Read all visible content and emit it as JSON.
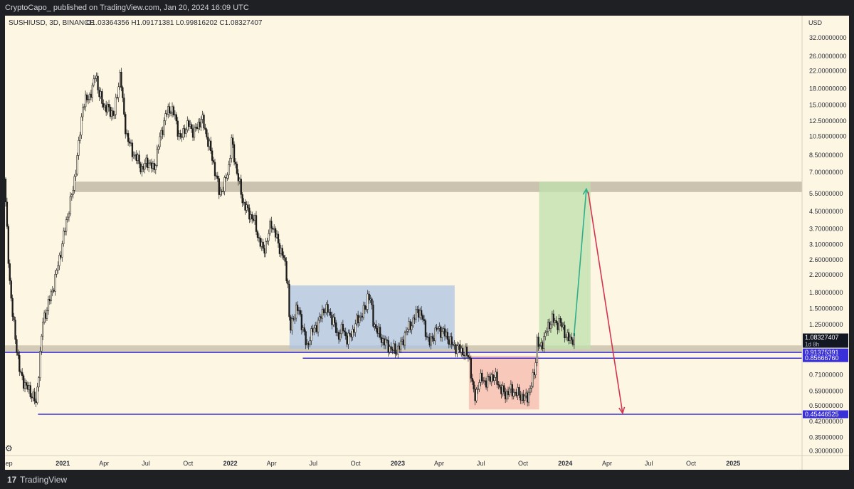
{
  "header": {
    "publish_line": "CryptoCapo_ published on TradingView.com, Jan 20, 2024 16:09 UTC"
  },
  "footer": {
    "logo_glyph": "17",
    "brand": "TradingView"
  },
  "chart_data": {
    "type": "candlestick",
    "title": "SUSHIUSD, 3D, BINANCE",
    "ohlc_readout": "O1.03364356 H1.09171381 L0.99816202 C1.08327407",
    "currency_label": "USD",
    "y_scale": "log",
    "y_ticks": [
      "32.00000000",
      "26.00000000",
      "22.00000000",
      "18.00000000",
      "15.00000000",
      "12.50000000",
      "10.50000000",
      "8.50000000",
      "7.00000000",
      "5.50000000",
      "4.50000000",
      "3.70000000",
      "3.10000000",
      "2.60000000",
      "2.20000000",
      "1.80000000",
      "1.50000000",
      "1.25000000",
      "0.71000000",
      "0.59000000",
      "0.50000000",
      "0.42000000",
      "0.35000000",
      "0.30000000"
    ],
    "y_tick_values": [
      32,
      26,
      22,
      18,
      15,
      12.5,
      10.5,
      8.5,
      7,
      5.5,
      4.5,
      3.7,
      3.1,
      2.6,
      2.2,
      1.8,
      1.5,
      1.25,
      0.71,
      0.59,
      0.5,
      0.42,
      0.35,
      0.3
    ],
    "x_ticks": [
      "Sep",
      "2021",
      "Apr",
      "Jul",
      "Oct",
      "2022",
      "Apr",
      "Jul",
      "Oct",
      "2023",
      "Apr",
      "Jul",
      "Oct",
      "2024",
      "Apr",
      "Jul",
      "Oct",
      "2025"
    ],
    "x_tick_dates": [
      "2020-09-01",
      "2021-01-01",
      "2021-04-01",
      "2021-07-01",
      "2021-10-01",
      "2022-01-01",
      "2022-04-01",
      "2022-07-01",
      "2022-10-01",
      "2023-01-01",
      "2023-04-01",
      "2023-07-01",
      "2023-10-01",
      "2024-01-01",
      "2024-04-01",
      "2024-07-01",
      "2024-10-01",
      "2025-01-01"
    ],
    "price_path": [
      [
        "2020-08-28",
        6.5
      ],
      [
        "2020-09-02",
        4.0
      ],
      [
        "2020-09-08",
        2.2
      ],
      [
        "2020-09-14",
        1.45
      ],
      [
        "2020-09-22",
        1.05
      ],
      [
        "2020-10-01",
        0.72
      ],
      [
        "2020-10-15",
        0.62
      ],
      [
        "2020-11-01",
        0.55
      ],
      [
        "2020-11-05",
        0.5
      ],
      [
        "2020-11-10",
        0.7
      ],
      [
        "2020-11-20",
        1.3
      ],
      [
        "2020-12-01",
        1.55
      ],
      [
        "2020-12-15",
        2.0
      ],
      [
        "2020-12-28",
        2.8
      ],
      [
        "2021-01-10",
        4.0
      ],
      [
        "2021-01-25",
        5.8
      ],
      [
        "2021-02-05",
        9.0
      ],
      [
        "2021-02-15",
        15.0
      ],
      [
        "2021-03-01",
        16.5
      ],
      [
        "2021-03-10",
        18.5
      ],
      [
        "2021-03-15",
        22.0
      ],
      [
        "2021-03-22",
        17.0
      ],
      [
        "2021-04-01",
        15.0
      ],
      [
        "2021-04-15",
        14.0
      ],
      [
        "2021-04-25",
        13.5
      ],
      [
        "2021-05-01",
        17.0
      ],
      [
        "2021-05-05",
        19.5
      ],
      [
        "2021-05-08",
        22.5
      ],
      [
        "2021-05-12",
        16.0
      ],
      [
        "2021-05-20",
        11.0
      ],
      [
        "2021-06-01",
        9.0
      ],
      [
        "2021-06-15",
        8.0
      ],
      [
        "2021-06-25",
        7.2
      ],
      [
        "2021-07-05",
        8.0
      ],
      [
        "2021-07-20",
        7.2
      ],
      [
        "2021-08-01",
        10.0
      ],
      [
        "2021-08-15",
        13.5
      ],
      [
        "2021-08-25",
        14.5
      ],
      [
        "2021-09-05",
        13.0
      ],
      [
        "2021-09-15",
        10.0
      ],
      [
        "2021-09-25",
        11.5
      ],
      [
        "2021-10-05",
        12.0
      ],
      [
        "2021-10-15",
        11.0
      ],
      [
        "2021-10-25",
        12.0
      ],
      [
        "2021-11-01",
        13.0
      ],
      [
        "2021-11-10",
        11.0
      ],
      [
        "2021-11-20",
        9.0
      ],
      [
        "2021-12-01",
        7.0
      ],
      [
        "2021-12-10",
        5.5
      ],
      [
        "2021-12-20",
        6.0
      ],
      [
        "2021-12-30",
        7.5
      ],
      [
        "2022-01-05",
        10.0
      ],
      [
        "2022-01-10",
        8.5
      ],
      [
        "2022-01-20",
        6.5
      ],
      [
        "2022-01-30",
        5.0
      ],
      [
        "2022-02-10",
        4.5
      ],
      [
        "2022-02-25",
        4.0
      ],
      [
        "2022-03-05",
        3.3
      ],
      [
        "2022-03-15",
        2.9
      ],
      [
        "2022-03-25",
        3.3
      ],
      [
        "2022-04-01",
        4.0
      ],
      [
        "2022-04-10",
        3.5
      ],
      [
        "2022-04-20",
        3.0
      ],
      [
        "2022-04-30",
        2.6
      ],
      [
        "2022-05-08",
        2.0
      ],
      [
        "2022-05-12",
        1.15
      ],
      [
        "2022-05-18",
        1.3
      ],
      [
        "2022-05-25",
        1.5
      ],
      [
        "2022-06-01",
        1.45
      ],
      [
        "2022-06-12",
        1.15
      ],
      [
        "2022-06-18",
        0.95
      ],
      [
        "2022-06-25",
        1.1
      ],
      [
        "2022-07-05",
        1.2
      ],
      [
        "2022-07-15",
        1.3
      ],
      [
        "2022-07-25",
        1.5
      ],
      [
        "2022-08-05",
        1.45
      ],
      [
        "2022-08-15",
        1.3
      ],
      [
        "2022-08-25",
        1.1
      ],
      [
        "2022-09-05",
        1.2
      ],
      [
        "2022-09-15",
        1.05
      ],
      [
        "2022-09-25",
        1.15
      ],
      [
        "2022-10-05",
        1.3
      ],
      [
        "2022-10-15",
        1.4
      ],
      [
        "2022-10-25",
        1.5
      ],
      [
        "2022-10-30",
        1.8
      ],
      [
        "2022-11-05",
        1.6
      ],
      [
        "2022-11-10",
        1.3
      ],
      [
        "2022-11-20",
        1.15
      ],
      [
        "2022-11-30",
        1.05
      ],
      [
        "2022-12-10",
        1.0
      ],
      [
        "2022-12-20",
        0.95
      ],
      [
        "2022-12-30",
        0.93
      ],
      [
        "2023-01-10",
        1.0
      ],
      [
        "2023-01-20",
        1.15
      ],
      [
        "2023-01-30",
        1.25
      ],
      [
        "2023-02-05",
        1.3
      ],
      [
        "2023-02-15",
        1.5
      ],
      [
        "2023-02-25",
        1.35
      ],
      [
        "2023-03-05",
        1.15
      ],
      [
        "2023-03-12",
        1.0
      ],
      [
        "2023-03-20",
        1.1
      ],
      [
        "2023-03-30",
        1.2
      ],
      [
        "2023-04-10",
        1.15
      ],
      [
        "2023-04-20",
        1.1
      ],
      [
        "2023-04-30",
        1.0
      ],
      [
        "2023-05-10",
        0.97
      ],
      [
        "2023-05-25",
        0.92
      ],
      [
        "2023-06-01",
        0.9
      ],
      [
        "2023-06-08",
        0.85
      ],
      [
        "2023-06-15",
        0.6
      ],
      [
        "2023-06-20",
        0.55
      ],
      [
        "2023-06-28",
        0.66
      ],
      [
        "2023-07-05",
        0.68
      ],
      [
        "2023-07-15",
        0.65
      ],
      [
        "2023-07-25",
        0.7
      ],
      [
        "2023-08-05",
        0.68
      ],
      [
        "2023-08-15",
        0.6
      ],
      [
        "2023-08-25",
        0.57
      ],
      [
        "2023-09-05",
        0.6
      ],
      [
        "2023-09-15",
        0.58
      ],
      [
        "2023-09-25",
        0.57
      ],
      [
        "2023-10-05",
        0.54
      ],
      [
        "2023-10-12",
        0.56
      ],
      [
        "2023-10-20",
        0.62
      ],
      [
        "2023-10-28",
        0.75
      ],
      [
        "2023-11-02",
        1.05
      ],
      [
        "2023-11-08",
        0.95
      ],
      [
        "2023-11-15",
        1.05
      ],
      [
        "2023-11-25",
        1.2
      ],
      [
        "2023-12-05",
        1.35
      ],
      [
        "2023-12-12",
        1.25
      ],
      [
        "2023-12-20",
        1.3
      ],
      [
        "2023-12-28",
        1.2
      ],
      [
        "2024-01-05",
        1.1
      ],
      [
        "2024-01-12",
        1.05
      ],
      [
        "2024-01-20",
        1.08
      ]
    ],
    "zones": [
      {
        "name": "resistance-zone",
        "from": "2021-01-25",
        "to": "2025-05-31",
        "y_low": 5.6,
        "y_high": 6.3,
        "color": "#b9b19e"
      },
      {
        "name": "support-zone",
        "from": "2020-08-28",
        "to": "2025-05-31",
        "y_low": 0.915,
        "y_high": 0.99,
        "color": "#c4bca5"
      },
      {
        "name": "range-box",
        "from": "2022-05-10",
        "to": "2023-05-05",
        "y_low": 0.95,
        "y_high": 1.95,
        "color": "#adc3e3"
      },
      {
        "name": "accumulation-box",
        "from": "2023-06-05",
        "to": "2023-11-05",
        "y_low": 0.48,
        "y_high": 0.88,
        "color": "#f6b8ac"
      },
      {
        "name": "target-box",
        "from": "2023-11-05",
        "to": "2024-02-25",
        "y_low": 0.95,
        "y_high": 6.3,
        "color": "#bfe0ae"
      }
    ],
    "lines": [
      {
        "name": "level-0-91",
        "y": 0.91375391,
        "from": "2020-08-28",
        "to": "2025-05-31"
      },
      {
        "name": "level-0-86",
        "y": 0.8566676,
        "from": "2022-06-08",
        "to": "2025-05-31"
      },
      {
        "name": "level-0-45",
        "y": 0.45446525,
        "from": "2020-11-08",
        "to": "2025-05-31"
      }
    ],
    "arrows": [
      {
        "name": "up-arrow",
        "from": [
          "2024-01-20",
          1.1
        ],
        "to": [
          "2024-02-16",
          5.8
        ],
        "color": "#2fae8c"
      },
      {
        "name": "down-arrow",
        "from": [
          "2024-02-20",
          5.6
        ],
        "to": [
          "2024-05-05",
          0.46
        ],
        "color": "#d6334e"
      }
    ],
    "price_labels": [
      {
        "name": "current-price-label",
        "value": 1.08327407,
        "text": "1.08327407",
        "sub": "1d 8h",
        "bg": "#131722",
        "fg": "#ffffff"
      },
      {
        "name": "level-0-91-label",
        "value": 0.91375391,
        "text": "0.91375391",
        "bg": "#3a30d8",
        "fg": "#ffffff"
      },
      {
        "name": "level-0-86-label",
        "value": 0.8566676,
        "text": "0.85666760",
        "bg": "#3a30d8",
        "fg": "#ffffff"
      },
      {
        "name": "level-0-45-label",
        "value": 0.45446525,
        "text": "0.45446525",
        "bg": "#3a30d8",
        "fg": "#ffffff"
      }
    ],
    "colors": {
      "background": "#fdf6e3",
      "candle": "#1a1a1a",
      "level_line": "#3a30d8",
      "axis_text": "#2a2e39"
    }
  }
}
